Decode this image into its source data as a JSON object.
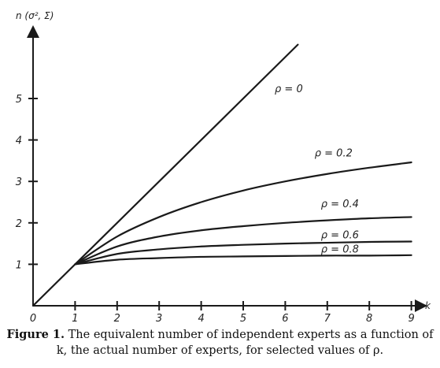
{
  "chart_data": {
    "type": "line",
    "ylabel": "n (σ², Σ)",
    "xlabel": "k",
    "xlim": [
      0,
      9
    ],
    "ylim": [
      0,
      6
    ],
    "x_ticks": [
      0,
      1,
      2,
      3,
      4,
      5,
      6,
      7,
      8,
      9
    ],
    "y_ticks": [
      1,
      2,
      3,
      4,
      5
    ],
    "grid": false,
    "series": [
      {
        "name": "ρ = 0",
        "x": [
          0,
          1,
          6.3
        ],
        "y": [
          0,
          1,
          6.3
        ]
      },
      {
        "name": "ρ = 0.2",
        "x": [
          1,
          2,
          3,
          4,
          5,
          6,
          7,
          8,
          9
        ],
        "y": [
          1,
          1.67,
          2.14,
          2.5,
          2.78,
          3.0,
          3.18,
          3.33,
          3.46
        ]
      },
      {
        "name": "ρ = 0.4",
        "x": [
          1,
          2,
          3,
          4,
          5,
          6,
          7,
          8,
          9
        ],
        "y": [
          1,
          1.43,
          1.67,
          1.82,
          1.92,
          2.0,
          2.06,
          2.11,
          2.14
        ]
      },
      {
        "name": "ρ = 0.6",
        "x": [
          1,
          2,
          3,
          4,
          5,
          6,
          7,
          8,
          9
        ],
        "y": [
          1,
          1.25,
          1.36,
          1.43,
          1.47,
          1.5,
          1.52,
          1.54,
          1.55
        ]
      },
      {
        "name": "ρ = 0.8",
        "x": [
          1,
          2,
          3,
          4,
          5,
          6,
          7,
          8,
          9
        ],
        "y": [
          1,
          1.11,
          1.15,
          1.18,
          1.19,
          1.2,
          1.21,
          1.21,
          1.22
        ]
      }
    ],
    "curve_labels": [
      "ρ = 0",
      "ρ = 0.2",
      "ρ = 0.4",
      "ρ = 0.6",
      "ρ = 0.8"
    ]
  },
  "caption": {
    "label": "Figure 1.",
    "text": "The equivalent number of independent experts as a function of k, the actual number of experts, for selected values of ρ."
  },
  "colors": {
    "ink": "#1a1a1a",
    "background": "#ffffff"
  }
}
